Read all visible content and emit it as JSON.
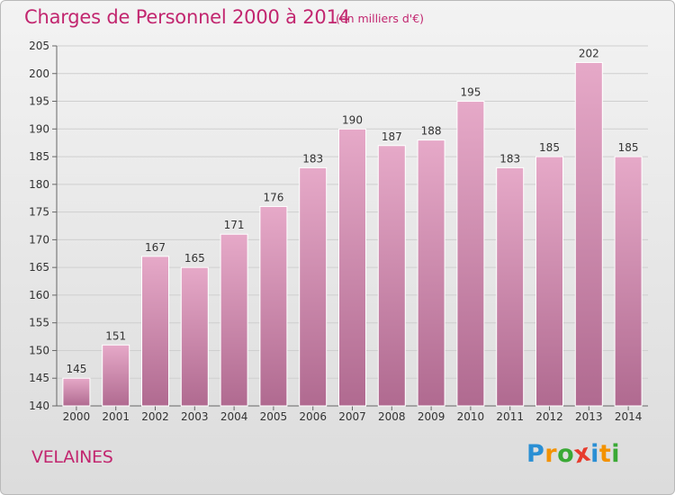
{
  "title": "Charges de Personnel 2000 à 2014",
  "subtitle": "(en milliers d'€)",
  "commune": "VELAINES",
  "logo": {
    "letters": [
      "P",
      "r",
      "o",
      "x",
      "i",
      "t",
      "i"
    ],
    "colors": [
      "#2a8fd4",
      "#f39200",
      "#3aa935",
      "#e73c2e",
      "#2a8fd4",
      "#f39200",
      "#3aa935"
    ]
  },
  "colors": {
    "bar": "#d98cb5",
    "bar_dark": "#b5668f",
    "accent": "#c2266f"
  },
  "chart_data": {
    "type": "bar",
    "categories": [
      "2000",
      "2001",
      "2002",
      "2003",
      "2004",
      "2005",
      "2006",
      "2007",
      "2008",
      "2009",
      "2010",
      "2011",
      "2012",
      "2013",
      "2014"
    ],
    "values": [
      145,
      151,
      167,
      165,
      171,
      176,
      183,
      190,
      187,
      188,
      195,
      183,
      185,
      202,
      185
    ],
    "title": "Charges de Personnel 2000 à 2014",
    "ylim": [
      140,
      205
    ],
    "yticks": [
      140,
      145,
      150,
      155,
      160,
      165,
      170,
      175,
      180,
      185,
      190,
      195,
      200,
      205
    ],
    "grid": true
  }
}
